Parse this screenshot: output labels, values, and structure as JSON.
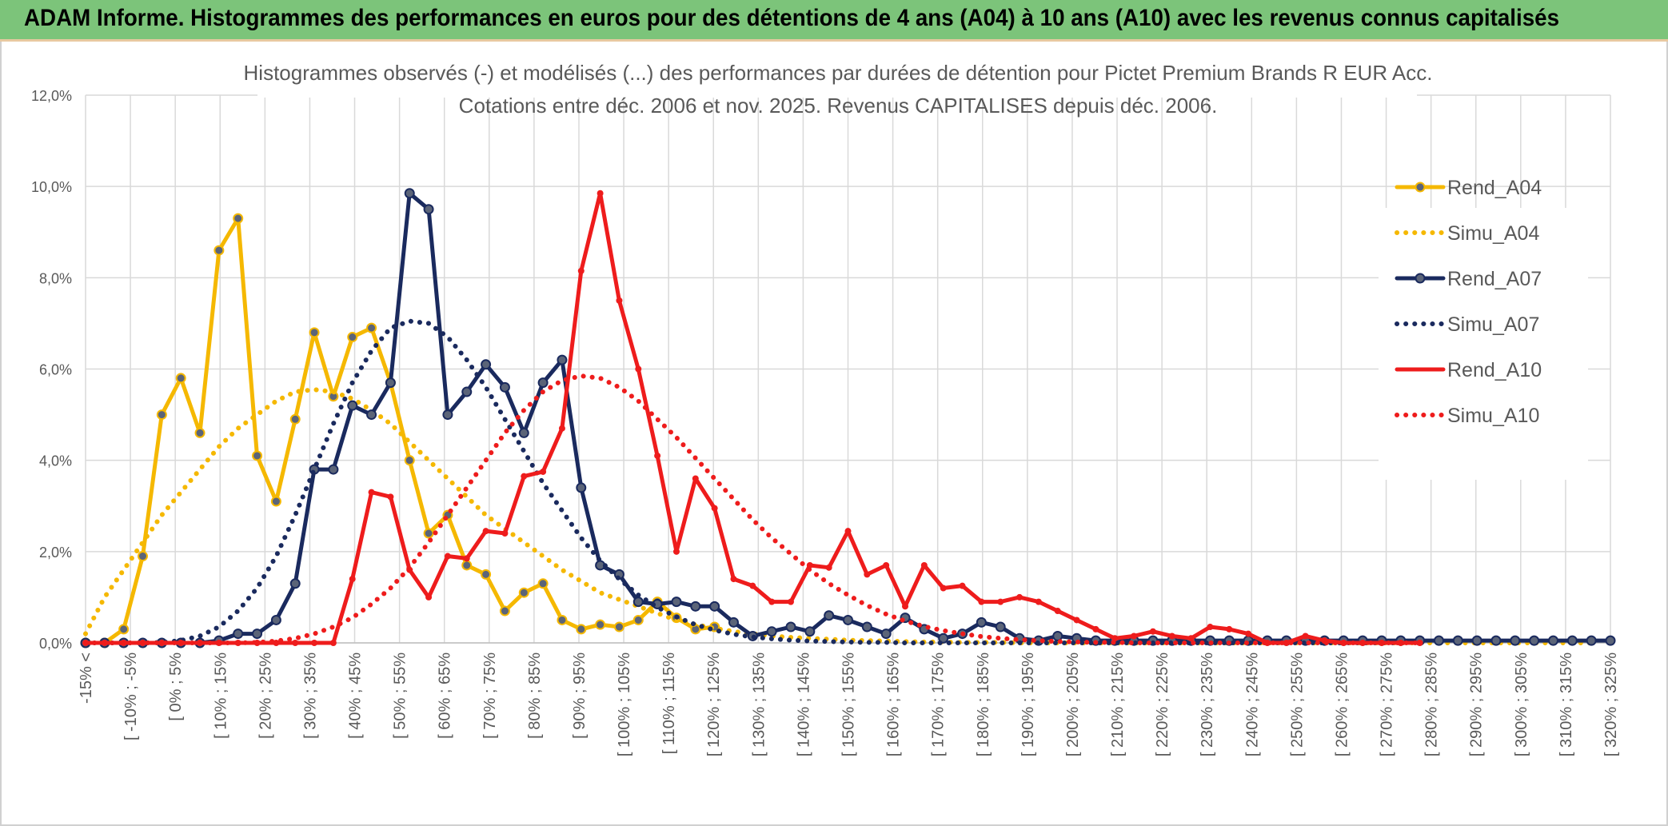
{
  "header": {
    "title": "ADAM Informe. Histogrammes des performances en euros pour des détentions de 4 ans (A04) à 10 ans (A10) avec les revenus connus capitalisés"
  },
  "chart_data": {
    "type": "line",
    "title": "Histogrammes observés (-) et modélisés (...) des performances par durées de détention pour Pictet Premium Brands R EUR Acc.",
    "subtitle": "Cotations entre déc. 2006 et nov. 2025. Revenus CAPITALISES depuis déc. 2006.",
    "ylim": [
      0,
      12
    ],
    "yticks": [
      "0,0%",
      "2,0%",
      "4,0%",
      "6,0%",
      "8,0%",
      "10,0%",
      "12,0%"
    ],
    "grid": true,
    "legend_position": "right",
    "x_labels": [
      "-15% <",
      "[ -10% ; -5%",
      "[ 0% ; 5%",
      "[ 10% ; 15%",
      "[ 20% ; 25%",
      "[ 30% ; 35%",
      "[ 40% ; 45%",
      "[ 50% ; 55%",
      "[ 60% ; 65%",
      "[ 70% ; 75%",
      "[ 80% ; 85%",
      "[ 90% ; 95%",
      "[ 100% ; 105%",
      "[ 110% ; 115%",
      "[ 120% ; 125%",
      "[ 130% ; 135%",
      "[ 140% ; 145%",
      "[ 150% ; 155%",
      "[ 160% ; 165%",
      "[ 170% ; 175%",
      "[ 180% ; 185%",
      "[ 190% ; 195%",
      "[ 200% ; 205%",
      "[ 210% ; 215%",
      "[ 220% ; 225%",
      "[ 230% ; 235%",
      "[ 240% ; 245%",
      "[ 250% ; 255%",
      "[ 260% ; 265%",
      "[ 270% ; 275%",
      "[ 280% ; 285%",
      "[ 290% ; 295%",
      "[ 300% ; 305%",
      "[ 310% ; 315%",
      "[ 320% ; 325%"
    ],
    "series": [
      {
        "name": "Rend_A04",
        "color": "#f5b800",
        "style": "solid",
        "markers": true,
        "values": [
          0,
          0,
          0.3,
          1.9,
          5.0,
          5.8,
          4.6,
          8.6,
          9.3,
          4.1,
          3.1,
          4.9,
          6.8,
          5.4,
          6.7,
          6.9,
          5.7,
          4.0,
          2.4,
          2.8,
          1.7,
          1.5,
          0.7,
          1.1,
          1.3,
          0.5,
          0.3,
          0.4,
          0.35,
          0.5,
          0.9,
          0.55,
          0.3,
          0.35
        ]
      },
      {
        "name": "Simu_A04",
        "color": "#f5b800",
        "style": "dotted",
        "markers": false,
        "values": [
          0.2,
          1.0,
          1.6,
          2.2,
          2.8,
          3.3,
          3.8,
          4.3,
          4.7,
          5.0,
          5.3,
          5.5,
          5.55,
          5.5,
          5.35,
          5.1,
          4.8,
          4.4,
          4.0,
          3.6,
          3.2,
          2.8,
          2.5,
          2.2,
          1.9,
          1.6,
          1.35,
          1.1,
          0.95,
          0.8,
          0.65,
          0.5,
          0.4,
          0.32,
          0.25,
          0.2,
          0.15,
          0.12,
          0.1,
          0.08,
          0.06,
          0.05,
          0.04,
          0.03,
          0.02,
          0.02,
          0.01,
          0.01,
          0.01,
          0.0,
          0.0,
          0.0,
          0.0,
          0.0,
          0.0,
          0.0,
          0.0,
          0.0,
          0.0,
          0.0,
          0.0,
          0.0,
          0.0,
          0.0,
          0.0,
          0.0,
          0.0,
          0.0,
          0.0,
          0.0,
          0.0,
          0.0,
          0.0,
          0.0,
          0.0,
          0.0,
          0.0,
          0.0,
          0.0,
          0.0
        ]
      },
      {
        "name": "Rend_A07",
        "color": "#1a2a5e",
        "style": "solid",
        "markers": true,
        "values": [
          0,
          0,
          0,
          0,
          0,
          0,
          0,
          0.05,
          0.2,
          0.2,
          0.5,
          1.3,
          3.8,
          3.8,
          5.2,
          5.0,
          5.7,
          9.85,
          9.5,
          5.0,
          5.5,
          6.1,
          5.6,
          4.6,
          5.7,
          6.2,
          3.4,
          1.7,
          1.5,
          0.9,
          0.85,
          0.9,
          0.8,
          0.8,
          0.45,
          0.15,
          0.25,
          0.35,
          0.25,
          0.6,
          0.5,
          0.35,
          0.2,
          0.55,
          0.3,
          0.1,
          0.2,
          0.45,
          0.35,
          0.1,
          0.05,
          0.15,
          0.1,
          0.05,
          0.05,
          0.05,
          0.05,
          0.05,
          0.05,
          0.05,
          0.05,
          0.05,
          0.05,
          0.05,
          0.05,
          0.05,
          0.05,
          0.05,
          0.05,
          0.05,
          0.05,
          0.05,
          0.05,
          0.05,
          0.05,
          0.05,
          0.05,
          0.05,
          0.05,
          0.05,
          0.05
        ]
      },
      {
        "name": "Simu_A07",
        "color": "#1a2a5e",
        "style": "dotted",
        "markers": false,
        "values": [
          0,
          0,
          0,
          0,
          0.01,
          0.05,
          0.15,
          0.35,
          0.7,
          1.2,
          1.9,
          2.8,
          3.8,
          4.8,
          5.7,
          6.4,
          6.9,
          7.05,
          7.0,
          6.7,
          6.2,
          5.6,
          4.9,
          4.2,
          3.5,
          2.9,
          2.3,
          1.8,
          1.4,
          1.05,
          0.78,
          0.57,
          0.4,
          0.28,
          0.19,
          0.13,
          0.09,
          0.06,
          0.04,
          0.03,
          0.02,
          0.01,
          0.01,
          0.0,
          0.0,
          0.0,
          0.0,
          0.0,
          0.0,
          0.0,
          0.0,
          0.0,
          0.0,
          0.0,
          0.0,
          0.0,
          0.0,
          0.0,
          0.0,
          0.0,
          0.0,
          0.0,
          0.0,
          0.0,
          0.0,
          0.0,
          0.0,
          0.0,
          0.0,
          0.0
        ]
      },
      {
        "name": "Rend_A10",
        "color": "#ee1c1c",
        "style": "solid",
        "markers": false,
        "values": [
          0,
          0,
          0,
          0,
          0,
          0,
          0,
          0,
          0,
          0,
          0,
          0,
          0,
          0,
          1.4,
          3.3,
          3.2,
          1.6,
          1.0,
          1.9,
          1.85,
          2.45,
          2.4,
          3.65,
          3.75,
          4.7,
          8.15,
          9.85,
          7.5,
          6.0,
          4.1,
          2.0,
          3.6,
          2.95,
          1.4,
          1.25,
          0.9,
          0.9,
          1.7,
          1.65,
          2.45,
          1.5,
          1.7,
          0.8,
          1.7,
          1.2,
          1.25,
          0.9,
          0.9,
          1.0,
          0.9,
          0.7,
          0.5,
          0.3,
          0.1,
          0.15,
          0.25,
          0.15,
          0.1,
          0.35,
          0.3,
          0.2,
          0.0,
          0.0,
          0.15,
          0.05,
          0.0,
          0.0,
          0.0,
          0.0,
          0.0
        ]
      },
      {
        "name": "Simu_A10",
        "color": "#ee1c1c",
        "style": "dotted",
        "markers": false,
        "values": [
          0,
          0,
          0,
          0,
          0,
          0,
          0,
          0,
          0,
          0.01,
          0.04,
          0.1,
          0.2,
          0.35,
          0.55,
          0.85,
          1.2,
          1.65,
          2.2,
          2.8,
          3.4,
          4.0,
          4.6,
          5.1,
          5.5,
          5.75,
          5.85,
          5.8,
          5.6,
          5.3,
          4.9,
          4.5,
          4.05,
          3.6,
          3.15,
          2.7,
          2.3,
          1.95,
          1.6,
          1.3,
          1.05,
          0.82,
          0.63,
          0.48,
          0.36,
          0.27,
          0.2,
          0.14,
          0.1,
          0.07,
          0.05,
          0.03,
          0.02,
          0.01,
          0.01,
          0.0,
          0.0,
          0.0,
          0.0,
          0.0,
          0.0,
          0.0,
          0.0,
          0.0,
          0.0,
          0.0,
          0.0,
          0.0,
          0.0,
          0.0,
          0.0
        ]
      }
    ]
  }
}
